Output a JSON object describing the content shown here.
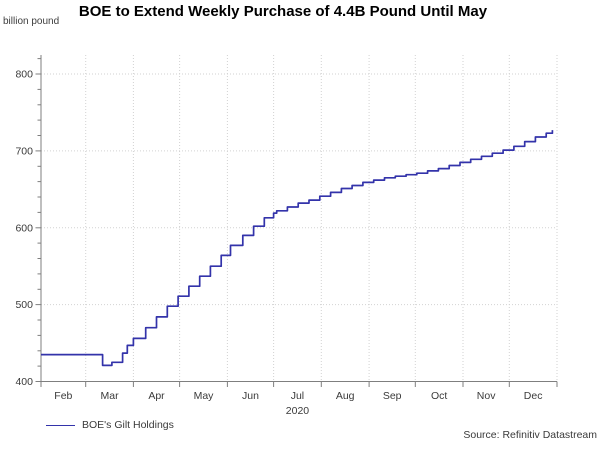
{
  "title": "BOE to Extend Weekly Purchase of 4.4B Pound Until May",
  "unit_label": "billion pound",
  "legend": {
    "label": "BOE's Gilt Holdings"
  },
  "source": "Source: Refinitiv Datastream",
  "colors": {
    "line": "#3333aa",
    "grid": "#d2d2d2",
    "axis": "#7f7f7f",
    "tick_text": "#3a3a3a",
    "title_text": "#000000",
    "background": "#ffffff"
  },
  "chart_data": {
    "type": "line",
    "step_interpolation": true,
    "title": "BOE to Extend Weekly Purchase of 4.4B Pound Until May",
    "xlabel": "",
    "ylabel": "billion pound",
    "year_label": "2020",
    "year_label_under_month": "Jul",
    "x_unit": "days since Feb 1, 2020",
    "month_tick_labels": [
      "Feb",
      "Mar",
      "Apr",
      "May",
      "Jun",
      "Jul",
      "Aug",
      "Sep",
      "Oct",
      "Nov",
      "Dec"
    ],
    "month_boundary_days": [
      0,
      29,
      60,
      90,
      121,
      151,
      182,
      213,
      243,
      274,
      304,
      335
    ],
    "xlim_days": [
      0,
      335
    ],
    "ylim": [
      400,
      825
    ],
    "y_major_ticks": [
      400,
      500,
      600,
      700,
      800
    ],
    "y_minor_tick_step": 20,
    "grid": "dotted, vertical at month boundaries and horizontal at major y ticks",
    "legend_position": "bottom-left",
    "series": [
      {
        "name": "BOE's Gilt Holdings",
        "color": "#3333aa",
        "points_day_value": [
          [
            0,
            435
          ],
          [
            35,
            435
          ],
          [
            40,
            421
          ],
          [
            46,
            425
          ],
          [
            53,
            437
          ],
          [
            56,
            447
          ],
          [
            60,
            456
          ],
          [
            68,
            470
          ],
          [
            75,
            484
          ],
          [
            82,
            498
          ],
          [
            89,
            511
          ],
          [
            96,
            524
          ],
          [
            103,
            537
          ],
          [
            110,
            550
          ],
          [
            117,
            564
          ],
          [
            123,
            577
          ],
          [
            131,
            590
          ],
          [
            138,
            602
          ],
          [
            145,
            613
          ],
          [
            151,
            619
          ],
          [
            153,
            622
          ],
          [
            160,
            627
          ],
          [
            167,
            632
          ],
          [
            174,
            636
          ],
          [
            181,
            641
          ],
          [
            188,
            646
          ],
          [
            195,
            651
          ],
          [
            202,
            655
          ],
          [
            209,
            659
          ],
          [
            216,
            662
          ],
          [
            223,
            665
          ],
          [
            230,
            667
          ],
          [
            237,
            669
          ],
          [
            244,
            671
          ],
          [
            251,
            674
          ],
          [
            258,
            677
          ],
          [
            265,
            681
          ],
          [
            272,
            685
          ],
          [
            279,
            689
          ],
          [
            286,
            693
          ],
          [
            293,
            697
          ],
          [
            300,
            701
          ],
          [
            307,
            706
          ],
          [
            314,
            712
          ],
          [
            321,
            718
          ],
          [
            328,
            723
          ],
          [
            332,
            727
          ]
        ]
      }
    ]
  }
}
